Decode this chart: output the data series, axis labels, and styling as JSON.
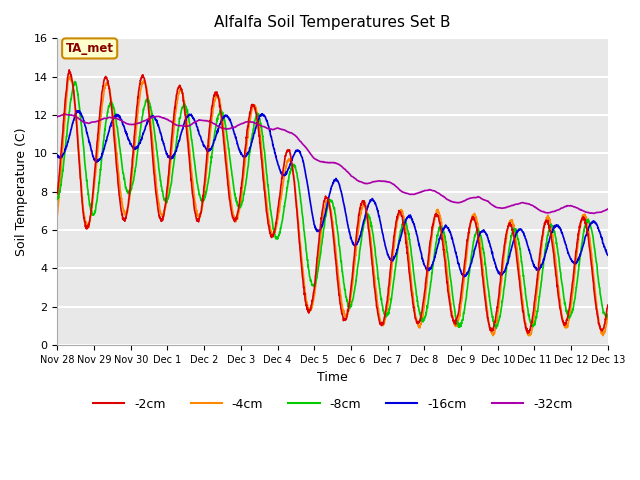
{
  "title": "Alfalfa Soil Temperatures Set B",
  "xlabel": "Time",
  "ylabel": "Soil Temperature (C)",
  "ylim": [
    0,
    16
  ],
  "background_color": "#e8e8e8",
  "plot_bg_light": "#f0f0f0",
  "colors": {
    "-2cm": "#dd0000",
    "-4cm": "#ff8800",
    "-8cm": "#00cc00",
    "-16cm": "#0000dd",
    "-32cm": "#aa00aa"
  },
  "legend_labels": [
    "-2cm",
    "-4cm",
    "-8cm",
    "-16cm",
    "-32cm"
  ],
  "annotation_text": "TA_met",
  "annotation_bg": "#ffffcc",
  "annotation_border": "#cc8800",
  "tick_labels": [
    "Nov 28",
    "Nov 29",
    "Nov 30",
    "Dec 1",
    "Dec 2",
    "Dec 3",
    "Dec 4",
    "Dec 5",
    "Dec 6",
    "Dec 7",
    "Dec 8",
    "Dec 9",
    "Dec 10",
    "Dec 11",
    "Dec 12",
    "Dec 13"
  ],
  "tick_positions": [
    0,
    1,
    2,
    3,
    4,
    5,
    6,
    7,
    8,
    9,
    10,
    11,
    12,
    13,
    14,
    15
  ]
}
